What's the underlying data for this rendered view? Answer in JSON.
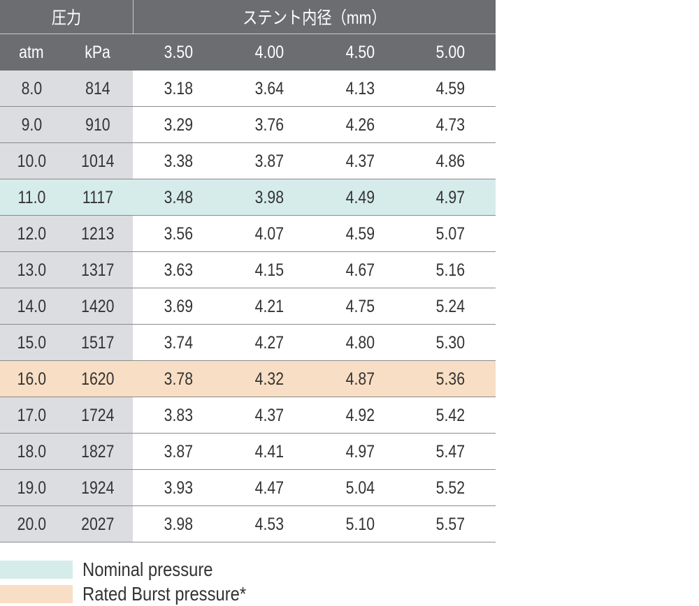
{
  "table": {
    "header": {
      "group1": "圧力",
      "group2": "ステント内径（mm）",
      "columns": [
        "atm",
        "kPa",
        "3.50",
        "4.00",
        "4.50",
        "5.00"
      ]
    },
    "rows": [
      [
        "8.0",
        "814",
        "3.18",
        "3.64",
        "4.13",
        "4.59"
      ],
      [
        "9.0",
        "910",
        "3.29",
        "3.76",
        "4.26",
        "4.73"
      ],
      [
        "10.0",
        "1014",
        "3.38",
        "3.87",
        "4.37",
        "4.86"
      ],
      [
        "11.0",
        "1117",
        "3.48",
        "3.98",
        "4.49",
        "4.97"
      ],
      [
        "12.0",
        "1213",
        "3.56",
        "4.07",
        "4.59",
        "5.07"
      ],
      [
        "13.0",
        "1317",
        "3.63",
        "4.15",
        "4.67",
        "5.16"
      ],
      [
        "14.0",
        "1420",
        "3.69",
        "4.21",
        "4.75",
        "5.24"
      ],
      [
        "15.0",
        "1517",
        "3.74",
        "4.27",
        "4.80",
        "5.30"
      ],
      [
        "16.0",
        "1620",
        "3.78",
        "4.32",
        "4.87",
        "5.36"
      ],
      [
        "17.0",
        "1724",
        "3.83",
        "4.37",
        "4.92",
        "5.42"
      ],
      [
        "18.0",
        "1827",
        "3.87",
        "4.41",
        "4.97",
        "5.47"
      ],
      [
        "19.0",
        "1924",
        "3.93",
        "4.47",
        "5.04",
        "5.52"
      ],
      [
        "20.0",
        "2027",
        "3.98",
        "4.53",
        "5.10",
        "5.57"
      ]
    ],
    "legend": [
      {
        "label": "Nominal pressure",
        "color": "#d6ecea",
        "rows": [
          3
        ]
      },
      {
        "label": "Rated Burst pressure*",
        "color": "#f8dec4",
        "rows": [
          8
        ]
      }
    ]
  }
}
